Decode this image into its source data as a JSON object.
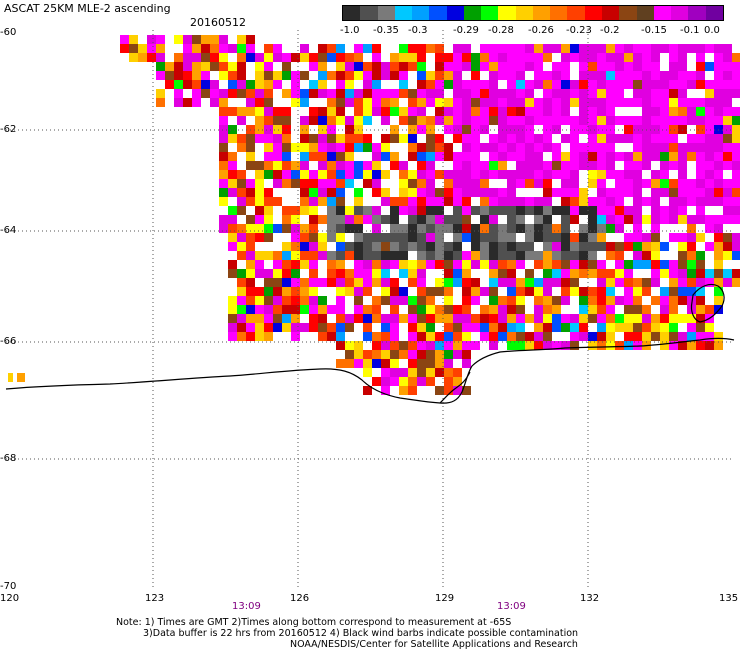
{
  "title": "ASCAT 25KM MLE-2 ascending",
  "date": "20160512",
  "colorbar": {
    "labels": [
      "-1.0",
      "-0.35",
      "-0.3",
      "-0.29",
      "-0.28",
      "-0.26",
      "-0.23",
      "-0.2",
      "-0.15",
      "-0.1",
      "0.0"
    ],
    "colors": [
      "#2a2a2a",
      "#505050",
      "#7a7a7a",
      "#00c8ff",
      "#00a0ff",
      "#0050ff",
      "#0000e0",
      "#00a000",
      "#00ff00",
      "#ffff00",
      "#ffd000",
      "#ffa000",
      "#ff7000",
      "#ff4000",
      "#ff0000",
      "#c80000",
      "#8b4513",
      "#604020",
      "#ff00ff",
      "#e000e0",
      "#a000c0",
      "#7000a0"
    ]
  },
  "map": {
    "lat_labels": [
      "-60",
      "-62",
      "-64",
      "-66",
      "-68",
      "-70"
    ],
    "lon_labels": [
      "120",
      "123",
      "126",
      "129",
      "132",
      "135"
    ],
    "times": [
      "13:09",
      "13:09"
    ]
  },
  "notes": {
    "line1": "Note: 1) Times are GMT 2)Times along bottom correspond to measurement at -65S",
    "line2": "3)Data buffer is 22 hrs from 20160512 4) Black wind barbs indicate possible contamination",
    "line3": "NOAA/NESDIS/Center for Satellite Applications and Research"
  }
}
